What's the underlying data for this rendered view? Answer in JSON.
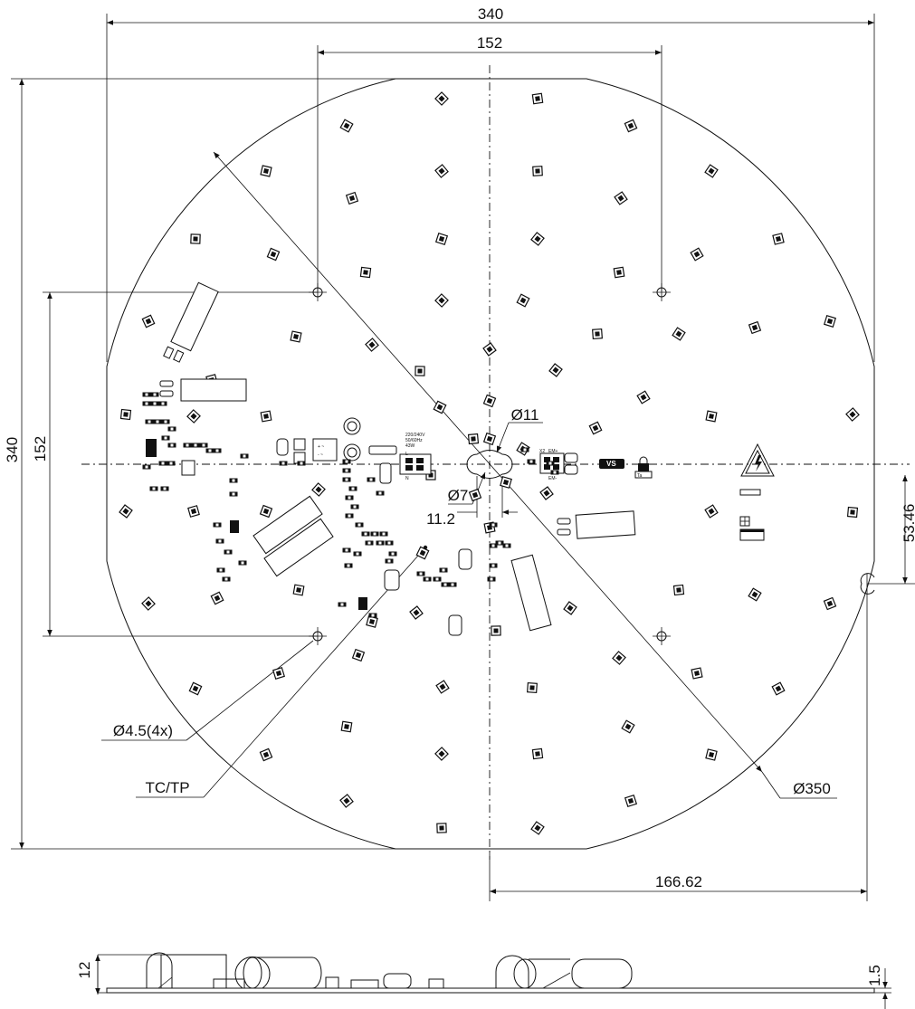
{
  "drawing": {
    "dims": {
      "top_width": "340",
      "top_hole_spacing": "152",
      "left_height": "340",
      "left_hole_spacing": "152",
      "right_offset": "53.46",
      "center_hole": "Ø11",
      "center_small": "Ø7",
      "center_slot": "11.2",
      "bottom_offset": "166.62",
      "side_height": "12",
      "side_thickness": "1.5"
    },
    "callouts": {
      "holes": "Ø4.5(4x)",
      "tc_tp": "TC/TP",
      "diameter": "Ø350"
    },
    "pcb_text": {
      "voltage": "220/240V",
      "frequency": "50/60Hz",
      "power": "43W",
      "l": "L",
      "n": "N",
      "x2": "X2",
      "em_plus": "EM+",
      "em_minus": "EM-",
      "logo": "VS",
      "ta_label": "Ta"
    }
  }
}
